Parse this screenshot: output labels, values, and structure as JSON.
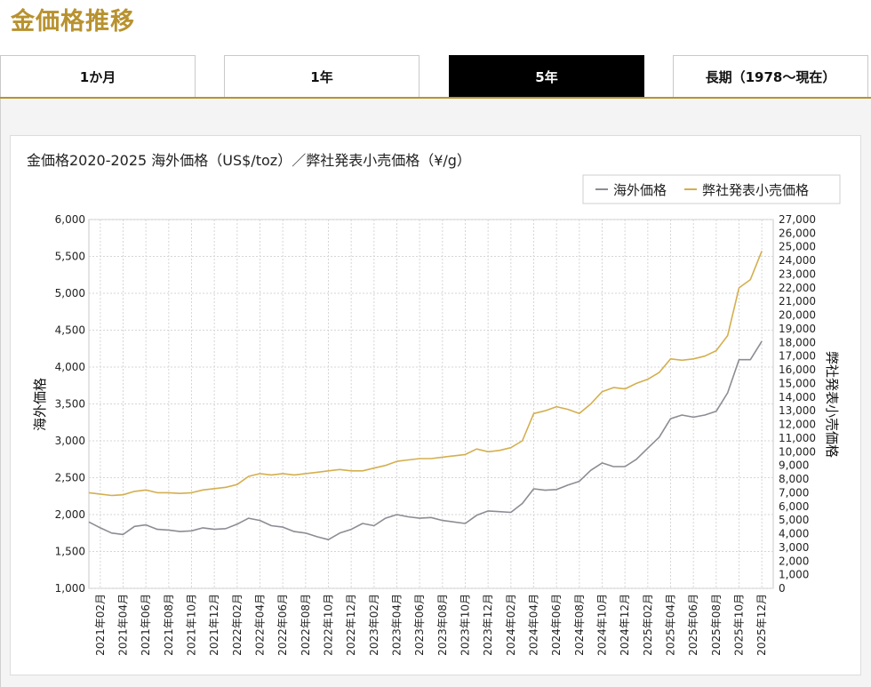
{
  "page": {
    "title": "金価格推移"
  },
  "tabs": [
    {
      "label": "1か月",
      "active": false
    },
    {
      "label": "1年",
      "active": false
    },
    {
      "label": "5年",
      "active": true
    },
    {
      "label": "長期（1978〜現在）",
      "active": false
    }
  ],
  "colors": {
    "accent": "#b8922f",
    "overseas_series": "#8c8c94",
    "retail_series": "#d4af4f"
  },
  "chart_data": {
    "type": "line",
    "title": "金価格2020-2025 海外価格（US$/toz）／弊社発表小売価格（¥/g）",
    "legend": {
      "position": "top-right",
      "entries": [
        "海外価格",
        "弊社発表小売価格"
      ]
    },
    "grid": true,
    "left_axis": {
      "label": "海外価格",
      "range": [
        1000,
        6000
      ],
      "ticks": [
        "1,000",
        "1,500",
        "2,000",
        "2,500",
        "3,000",
        "3,500",
        "4,000",
        "4,500",
        "5,000",
        "5,500",
        "6,000"
      ]
    },
    "right_axis": {
      "label": "弊社発表小売価格",
      "range": [
        0,
        27000
      ],
      "ticks": [
        "0",
        "1,000",
        "2,000",
        "3,000",
        "4,000",
        "5,000",
        "6,000",
        "7,000",
        "8,000",
        "9,000",
        "10,000",
        "11,000",
        "12,000",
        "13,000",
        "14,000",
        "15,000",
        "16,000",
        "17,000",
        "18,000",
        "19,000",
        "20,000",
        "21,000",
        "22,000",
        "23,000",
        "24,000",
        "25,000",
        "26,000",
        "27,000"
      ]
    },
    "x_axis": {
      "range": [
        "2021-01",
        "2026-01"
      ],
      "ticks": [
        "2021年02月",
        "2021年04月",
        "2021年06月",
        "2021年08月",
        "2021年10月",
        "2021年12月",
        "2022年02月",
        "2022年04月",
        "2022年06月",
        "2022年08月",
        "2022年10月",
        "2022年12月",
        "2023年02月",
        "2023年04月",
        "2023年06月",
        "2023年08月",
        "2023年10月",
        "2023年12月",
        "2024年02月",
        "2024年04月",
        "2024年06月",
        "2024年08月",
        "2024年10月",
        "2024年12月",
        "2025年02月",
        "2025年04月",
        "2025年06月",
        "2025年08月",
        "2025年10月",
        "2025年12月"
      ]
    },
    "x": [
      "2021-01",
      "2021-02",
      "2021-03",
      "2021-04",
      "2021-05",
      "2021-06",
      "2021-07",
      "2021-08",
      "2021-09",
      "2021-10",
      "2021-11",
      "2021-12",
      "2022-01",
      "2022-02",
      "2022-03",
      "2022-04",
      "2022-05",
      "2022-06",
      "2022-07",
      "2022-08",
      "2022-09",
      "2022-10",
      "2022-11",
      "2022-12",
      "2023-01",
      "2023-02",
      "2023-03",
      "2023-04",
      "2023-05",
      "2023-06",
      "2023-07",
      "2023-08",
      "2023-09",
      "2023-10",
      "2023-11",
      "2023-12",
      "2024-01",
      "2024-02",
      "2024-03",
      "2024-04",
      "2024-05",
      "2024-06",
      "2024-07",
      "2024-08",
      "2024-09",
      "2024-10",
      "2024-11",
      "2024-12",
      "2025-01",
      "2025-02",
      "2025-03",
      "2025-04",
      "2025-05",
      "2025-06",
      "2025-07",
      "2025-08",
      "2025-09",
      "2025-10",
      "2025-11",
      "2025-12"
    ],
    "series": [
      {
        "name": "海外価格",
        "axis": "left",
        "values": [
          1900,
          1820,
          1750,
          1730,
          1840,
          1860,
          1800,
          1790,
          1770,
          1780,
          1820,
          1800,
          1810,
          1870,
          1950,
          1920,
          1850,
          1830,
          1770,
          1750,
          1700,
          1660,
          1750,
          1800,
          1880,
          1850,
          1950,
          2000,
          1970,
          1950,
          1960,
          1920,
          1900,
          1880,
          1990,
          2050,
          2040,
          2030,
          2150,
          2350,
          2330,
          2340,
          2400,
          2450,
          2600,
          2700,
          2650,
          2650,
          2750,
          2900,
          3050,
          3300,
          3350,
          3320,
          3350,
          3400,
          3650,
          4100,
          4100,
          4350
        ]
      },
      {
        "name": "弊社発表小売価格",
        "axis": "right",
        "values": [
          7000,
          6900,
          6800,
          6850,
          7100,
          7200,
          7000,
          7000,
          6950,
          7000,
          7200,
          7300,
          7400,
          7600,
          8200,
          8400,
          8300,
          8400,
          8300,
          8400,
          8500,
          8600,
          8700,
          8600,
          8600,
          8800,
          9000,
          9300,
          9400,
          9500,
          9500,
          9600,
          9700,
          9800,
          10200,
          10000,
          10100,
          10300,
          10800,
          12800,
          13000,
          13300,
          13100,
          12800,
          13500,
          14400,
          14700,
          14600,
          15000,
          15300,
          15800,
          16800,
          16700,
          16800,
          17000,
          17400,
          18500,
          22000,
          22600,
          24700
        ]
      }
    ]
  }
}
